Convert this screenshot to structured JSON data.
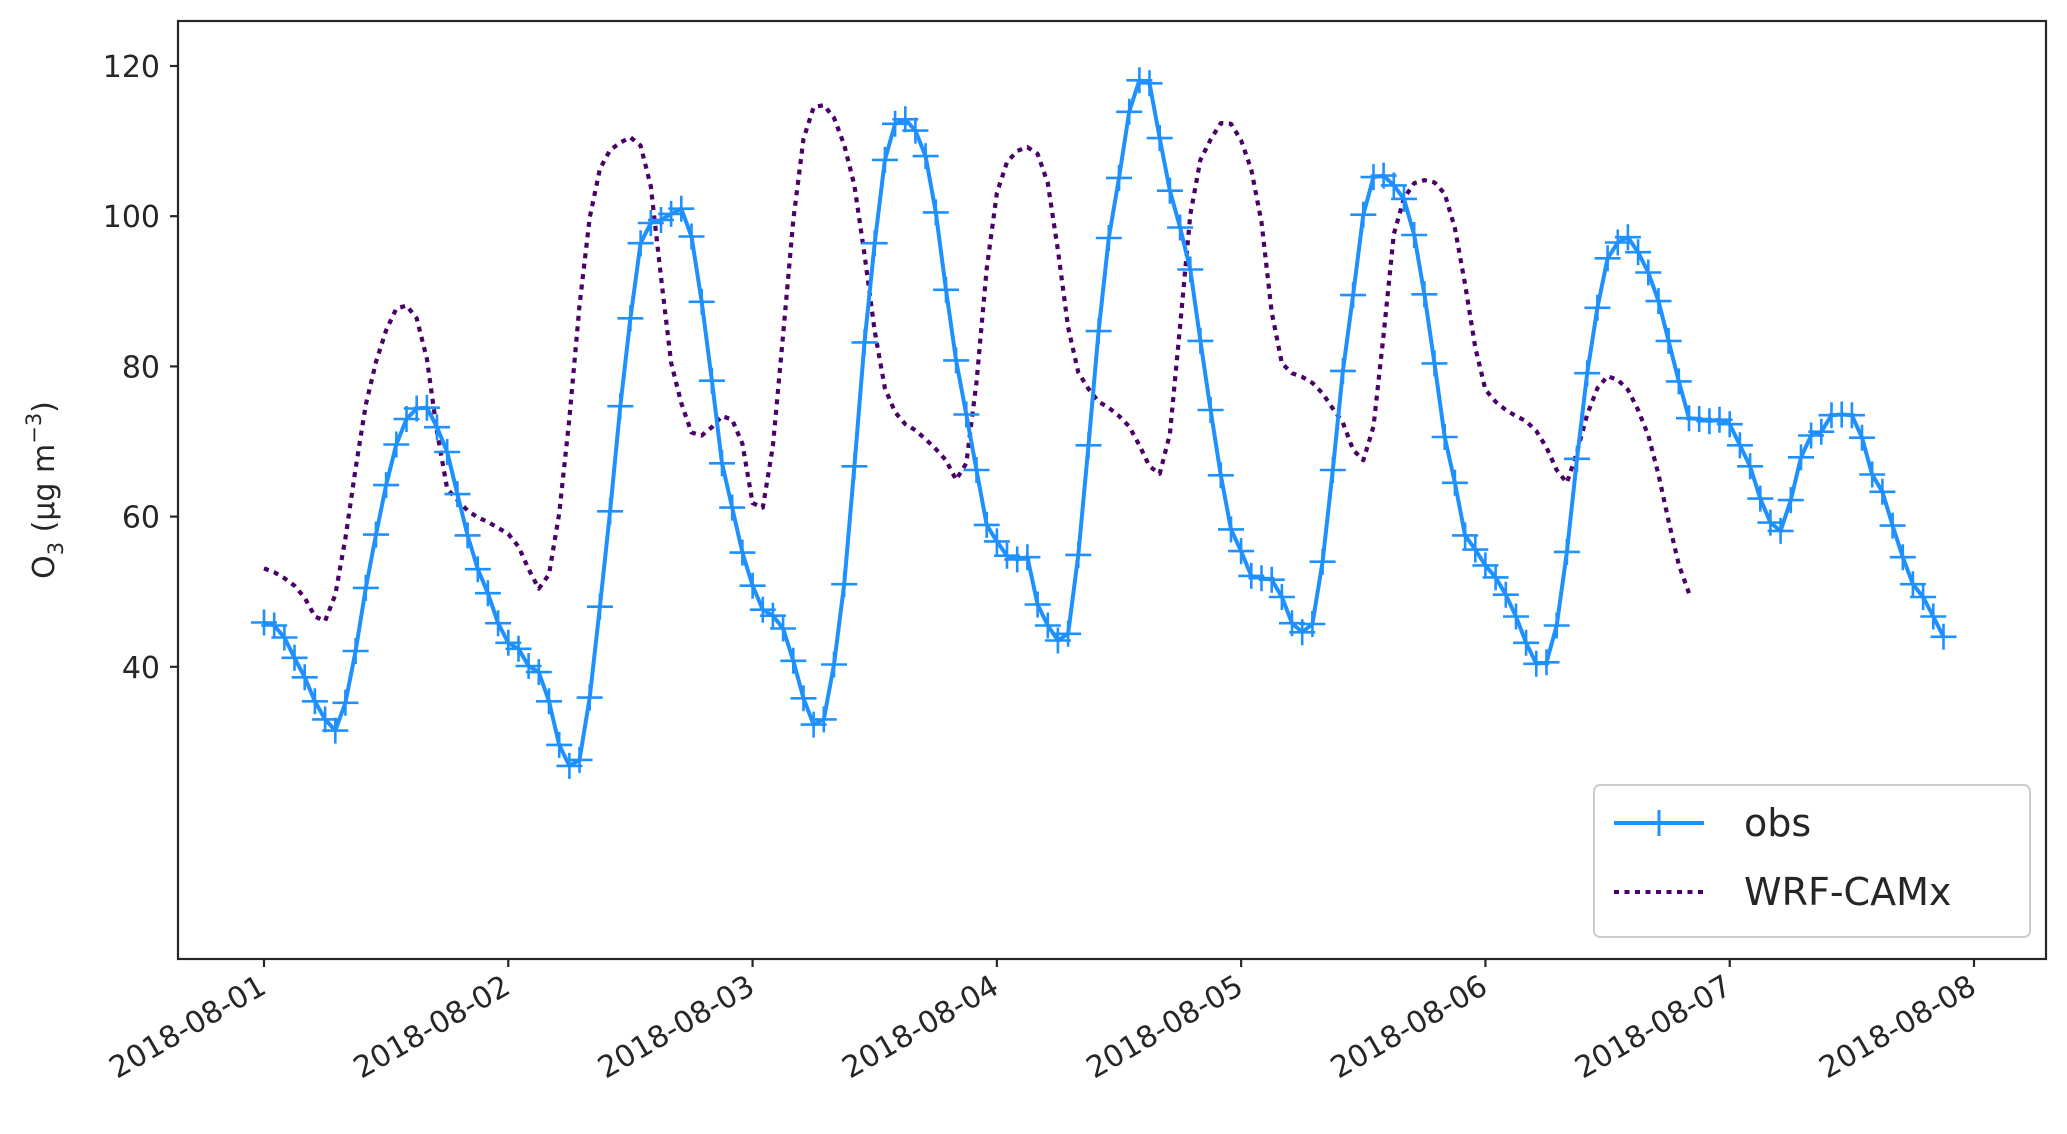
{
  "chart_data": {
    "type": "line",
    "title": "",
    "xlabel": "",
    "ylabel": "O3 (µg m−3)",
    "ylabel_parts": {
      "base": "O",
      "sub": "3",
      "text": " (µg m",
      "sup": "−3",
      "close": ")"
    },
    "xlim": [
      "2018-08-01",
      "2018-08-08"
    ],
    "xtick_labels": [
      "2018-08-01",
      "2018-08-02",
      "2018-08-03",
      "2018-08-04",
      "2018-08-05",
      "2018-08-06",
      "2018-08-07",
      "2018-08-08"
    ],
    "ylim": [
      20,
      120
    ],
    "yticks": [
      40,
      60,
      80,
      100,
      120
    ],
    "ytick_labels": [
      "40",
      "60",
      "80",
      "100",
      "120"
    ],
    "grid": false,
    "legend_position": "lower-right",
    "x_start": "2018-08-01T00:00",
    "x_step_hours": 1,
    "series": [
      {
        "name": "obs",
        "color": "#1e90ff",
        "style": "solid",
        "marker": "plus",
        "values": [
          45.9,
          45.5,
          43.9,
          41.2,
          38.6,
          35.4,
          33.0,
          31.5,
          35.2,
          42.1,
          50.5,
          57.6,
          64.2,
          69.6,
          73.0,
          74.4,
          74.5,
          71.9,
          68.6,
          63.0,
          57.5,
          53.0,
          49.8,
          45.8,
          43.2,
          42.4,
          40.1,
          39.3,
          35.4,
          29.6,
          26.8,
          27.6,
          35.9,
          48.0,
          60.7,
          74.7,
          86.4,
          96.4,
          99.1,
          99.5,
          100.3,
          101.0,
          97.3,
          88.6,
          78.1,
          67.1,
          61.2,
          55.2,
          50.8,
          47.6,
          46.8,
          45.1,
          40.8,
          35.8,
          32.3,
          33.0,
          40.3,
          51.0,
          66.7,
          83.2,
          96.4,
          107.5,
          112.3,
          112.9,
          111.4,
          108.0,
          100.5,
          90.2,
          80.8,
          73.6,
          66.2,
          58.9,
          56.7,
          54.8,
          54.3,
          54.6,
          48.3,
          45.5,
          43.5,
          44.4,
          54.9,
          69.5,
          84.7,
          97.1,
          105.1,
          113.9,
          118.1,
          117.7,
          110.4,
          103.4,
          98.5,
          92.9,
          83.4,
          74.2,
          65.5,
          58.3,
          55.4,
          52.1,
          51.8,
          51.6,
          49.3,
          45.8,
          44.6,
          45.7,
          54.0,
          66.2,
          79.4,
          89.5,
          100.2,
          105.2,
          105.4,
          104.1,
          102.3,
          97.5,
          89.6,
          80.4,
          70.6,
          64.5,
          57.5,
          55.6,
          53.5,
          51.9,
          49.6,
          46.7,
          43.2,
          40.4,
          40.6,
          45.5,
          55.3,
          67.7,
          79.1,
          87.8,
          94.4,
          96.5,
          97.2,
          95.2,
          92.5,
          88.7,
          83.4,
          78.0,
          73.1,
          73.0,
          72.7,
          72.9,
          72.3,
          69.5,
          66.7,
          62.4,
          59.2,
          58.1,
          62.2,
          67.9,
          70.8,
          71.3,
          73.5,
          73.6,
          73.5,
          70.5,
          65.6,
          63.3,
          58.8,
          54.6,
          51.0,
          49.3,
          46.7,
          44.0
        ]
      },
      {
        "name": "WRF-CAMx",
        "color": "#4b0068",
        "style": "dotted",
        "marker": "none",
        "values": [
          53.1,
          52.6,
          51.8,
          50.8,
          49.2,
          46.7,
          46.1,
          49.6,
          57.1,
          66.4,
          74.9,
          80.6,
          84.8,
          87.7,
          88.1,
          86.4,
          81.0,
          71.3,
          63.7,
          62.2,
          60.8,
          59.9,
          59.3,
          58.5,
          57.7,
          56.0,
          53.0,
          50.4,
          52.3,
          60.4,
          73.1,
          88.1,
          99.8,
          106.3,
          108.8,
          109.8,
          110.5,
          109.4,
          104.0,
          91.9,
          80.5,
          75.1,
          71.2,
          70.8,
          71.9,
          73.4,
          72.9,
          69.7,
          61.8,
          61.2,
          69.4,
          84.2,
          99.5,
          110.3,
          114.5,
          114.8,
          113.1,
          109.5,
          104.1,
          94.9,
          84.7,
          77.1,
          73.9,
          72.3,
          71.5,
          70.3,
          69.0,
          67.5,
          64.9,
          67.1,
          77.9,
          93.0,
          103.1,
          107.2,
          108.7,
          109.2,
          108.3,
          104.4,
          95.5,
          85.2,
          79.2,
          77.0,
          75.3,
          74.5,
          73.4,
          72.0,
          69.5,
          66.7,
          65.7,
          71.0,
          85.4,
          100.2,
          107.5,
          110.2,
          112.4,
          112.3,
          110.1,
          106.2,
          99.2,
          87.2,
          80.4,
          79.1,
          78.6,
          77.8,
          76.4,
          74.4,
          72.5,
          68.9,
          67.5,
          72.0,
          84.2,
          97.6,
          102.4,
          104.4,
          104.8,
          104.5,
          103.0,
          98.4,
          90.9,
          82.5,
          76.9,
          75.3,
          74.2,
          73.4,
          72.7,
          71.4,
          69.2,
          66.2,
          64.5,
          68.6,
          73.6,
          77.1,
          78.7,
          78.2,
          76.9,
          74.2,
          70.8,
          65.6,
          59.4,
          53.6,
          49.8
        ]
      }
    ]
  }
}
